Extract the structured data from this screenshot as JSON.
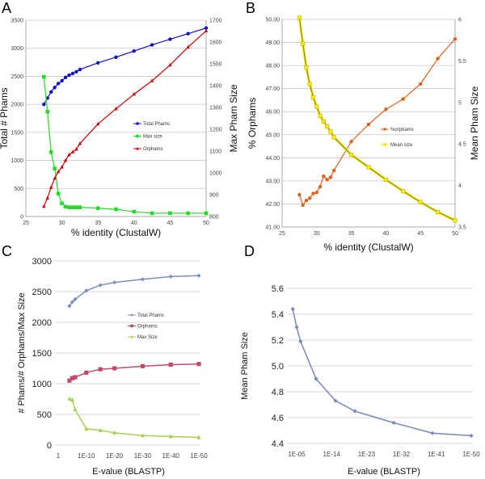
{
  "chart_data": [
    {
      "panel": "A",
      "type": "line",
      "xlabel": "% identity (ClustalW)",
      "ylabel": "Total # Phams",
      "ylabel_right": "Max Pham Size",
      "xlim": [
        25,
        50
      ],
      "ylim": [
        0,
        3500
      ],
      "ylim_right": [
        800,
        1700
      ],
      "grid": true,
      "legend": "center-right",
      "xticks": [
        "25",
        "30",
        "35",
        "40",
        "45",
        "50"
      ],
      "yticks": [
        "0",
        "500",
        "1000",
        "1500",
        "2000",
        "2500",
        "3000",
        "3500"
      ],
      "yticks_right": [
        "800",
        "900",
        "1000",
        "1100",
        "1200",
        "1300",
        "1400",
        "1500",
        "1600",
        "1700"
      ],
      "x": [
        27.5,
        28,
        28.5,
        29,
        29.5,
        30,
        30.5,
        31,
        31.5,
        32,
        32.5,
        35,
        37.5,
        40,
        42.5,
        45,
        47.5,
        50
      ],
      "series": [
        {
          "name": "Total Phams",
          "axis": "left",
          "color": "#1010c8",
          "marker": "circle",
          "values": [
            2000,
            2110,
            2220,
            2300,
            2370,
            2420,
            2480,
            2520,
            2550,
            2580,
            2620,
            2740,
            2840,
            2950,
            3060,
            3160,
            3260,
            3360
          ]
        },
        {
          "name": "Max size",
          "axis": "right",
          "color": "#22dd22",
          "marker": "square",
          "values": [
            1440,
            1280,
            1095,
            1020,
            905,
            860,
            845,
            842,
            842,
            842,
            842,
            838,
            833,
            822,
            815,
            815,
            815,
            815
          ]
        },
        {
          "name": "Orphams",
          "axis": "left",
          "color": "#cc0000",
          "marker": "triangle",
          "values": [
            180,
            330,
            520,
            680,
            800,
            880,
            1000,
            1100,
            1150,
            1200,
            1300,
            1650,
            1920,
            2180,
            2420,
            2700,
            3020,
            3310
          ]
        }
      ]
    },
    {
      "panel": "B",
      "type": "line",
      "xlabel": "% identity (ClustalW)",
      "ylabel": "% Orphams",
      "ylabel_right": "Mean Pham Size",
      "xlim": [
        25,
        50
      ],
      "ylim": [
        41,
        50
      ],
      "ylim_right": [
        3.5,
        6
      ],
      "grid": true,
      "legend": "center-right",
      "xticks": [
        "25",
        "30",
        "35",
        "40",
        "45",
        "50"
      ],
      "yticks": [
        "41.00",
        "42.00",
        "43.00",
        "44.00",
        "45.00",
        "46.00",
        "47.00",
        "48.00",
        "49.00",
        "50.00"
      ],
      "yticks_right": [
        "3.5",
        "4",
        "4.5",
        "5",
        "5.5",
        "6"
      ],
      "x": [
        27.5,
        28,
        28.5,
        29,
        29.5,
        30,
        30.5,
        31,
        31.5,
        32,
        32.5,
        35,
        37.5,
        40,
        42.5,
        45,
        47.5,
        50
      ],
      "series": [
        {
          "name": "%orphams",
          "axis": "left",
          "color": "#e0601c",
          "marker": "circle",
          "values": [
            42.4,
            41.95,
            42.15,
            42.25,
            42.45,
            42.5,
            42.75,
            43.2,
            43.05,
            43.15,
            43.45,
            44.7,
            45.45,
            46.1,
            46.55,
            47.2,
            48.3,
            49.15
          ]
        },
        {
          "name": "Mean size",
          "axis": "right",
          "color": "#ffee00",
          "marker": "square",
          "values": [
            6.02,
            5.71,
            5.42,
            5.22,
            5.06,
            4.95,
            4.84,
            4.77,
            4.71,
            4.65,
            4.58,
            4.37,
            4.22,
            4.07,
            3.93,
            3.8,
            3.68,
            3.58
          ]
        }
      ]
    },
    {
      "panel": "C",
      "type": "line",
      "xlabel": "E-value (BLASTP)",
      "ylabel": "# Phams/# Orphams/Max Size",
      "ylim": [
        0,
        3000
      ],
      "grid": true,
      "legend": "center-right",
      "xticks": [
        "1",
        "1E-10",
        "1E-20",
        "1E-30",
        "1E-40",
        "1E-50"
      ],
      "yticks": [
        "0",
        "500",
        "1000",
        "1500",
        "2000",
        "2500",
        "3000"
      ],
      "x": [
        0.0001,
        1e-05,
        1e-06,
        1e-10,
        1e-15,
        1e-20,
        1e-30,
        1e-40,
        1e-50
      ],
      "series": [
        {
          "name": "Total Phams",
          "color": "#7b8fc4",
          "marker": "diamond",
          "values": [
            2265,
            2330,
            2375,
            2515,
            2605,
            2650,
            2700,
            2745,
            2760
          ]
        },
        {
          "name": "Orphams",
          "color": "#c04a6a",
          "marker": "square",
          "values": [
            1050,
            1090,
            1105,
            1180,
            1235,
            1250,
            1285,
            1310,
            1320
          ]
        },
        {
          "name": "Max Size",
          "color": "#a8d050",
          "marker": "triangle",
          "values": [
            755,
            735,
            580,
            265,
            240,
            200,
            155,
            140,
            125
          ]
        }
      ]
    },
    {
      "panel": "D",
      "type": "line",
      "xlabel": "E-value (BLASTP)",
      "ylabel": "Mean Pham Size",
      "ylim": [
        4.4,
        5.6
      ],
      "grid": true,
      "xticks": [
        "1E-05",
        "1E-14",
        "1E-23",
        "1E-32",
        "1E-41",
        "1E-50"
      ],
      "yticks": [
        "4.4",
        "4.6",
        "4.8",
        "5.0",
        "5.2",
        "5.4",
        "5.6"
      ],
      "x": [
        0.0001,
        1e-05,
        1e-06,
        1e-10,
        1e-15,
        1e-20,
        1e-30,
        1e-40,
        1e-50
      ],
      "series": [
        {
          "color": "#7888b8",
          "marker": "diamond",
          "values": [
            5.44,
            5.3,
            5.19,
            4.9,
            4.73,
            4.65,
            4.56,
            4.48,
            4.46
          ]
        }
      ]
    }
  ]
}
